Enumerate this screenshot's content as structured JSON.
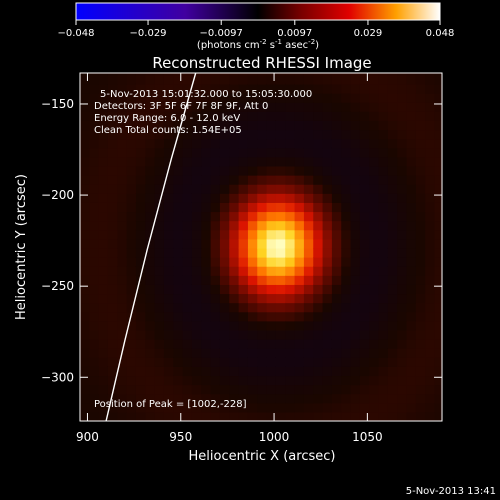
{
  "colorbar": {
    "ticks": [
      "-0.048",
      "-0.029",
      "-0.0097",
      "0.0097",
      "0.029",
      "0.048"
    ],
    "units_main": "(photons cm",
    "units_sup1": "-2",
    "units_mid": " s",
    "units_sup2": "-1",
    "units_end": " asec",
    "units_sup3": "-2",
    "units_close": ")",
    "range": [
      -0.048,
      0.048
    ]
  },
  "chart_data": {
    "type": "heatmap",
    "title": "Reconstructed RHESSI Image",
    "xlabel": "Heliocentric X (arcsec)",
    "ylabel": "Heliocentric Y (arcsec)",
    "xlim": [
      896,
      1090
    ],
    "ylim": [
      -324,
      -133
    ],
    "x_ticks": [
      900,
      950,
      1000,
      1050
    ],
    "y_ticks": [
      -150,
      -200,
      -250,
      -300
    ],
    "x_tick_labels": [
      "900",
      "950",
      "1000",
      "1050"
    ],
    "y_tick_labels": [
      "−150",
      "−200",
      "−250",
      "−300"
    ],
    "annotations": {
      "time_range": "5-Nov-2013 15:01:32.000 to 15:05:30.000",
      "detectors": "Detectors: 3F 5F 6F 7F 8F 9F, Att 0",
      "energy": "Energy Range: 6.0 - 12.0 keV",
      "clean": "Clean    Total counts: 1.54E+05",
      "peak": "Position of Peak = [1002,-228]"
    },
    "peak": {
      "x": 1002,
      "y": -228
    },
    "limb_curve": {
      "x": [
        958,
        945,
        932,
        920,
        910
      ],
      "y": [
        -133,
        -180,
        -230,
        -280,
        -324
      ]
    }
  },
  "footer": {
    "timestamp": "5-Nov-2013 13:41"
  }
}
